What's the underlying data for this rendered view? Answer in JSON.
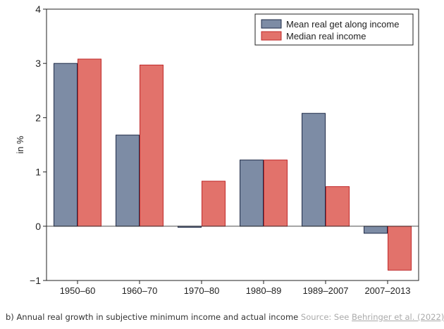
{
  "chart_data": {
    "type": "bar",
    "title": "",
    "xlabel": "",
    "ylabel": "in %",
    "ylim": [
      -1,
      4
    ],
    "yticks": [
      "4",
      "3",
      "2",
      "1",
      "0",
      "−1"
    ],
    "grid": false,
    "legend_position": "top-right",
    "categories": [
      "1950–60",
      "1960–70",
      "1970–80",
      "1980–89",
      "1989–2007",
      "2007–2013"
    ],
    "series": [
      {
        "name": "Mean real get along income",
        "color": "#7d8ca5",
        "stroke": "#1f2b48",
        "values": [
          3.0,
          1.68,
          -0.02,
          1.22,
          2.08,
          -0.13
        ]
      },
      {
        "name": "Median real income",
        "color": "#e2726b",
        "stroke": "#c0292a",
        "values": [
          3.08,
          2.97,
          0.83,
          1.22,
          0.73,
          -0.81
        ]
      }
    ]
  },
  "caption": {
    "text": "b) Annual real growth in subjective minimum income and actual income",
    "source_prefix": "Source: See",
    "source_link": "Behringer et al. (2022)"
  }
}
